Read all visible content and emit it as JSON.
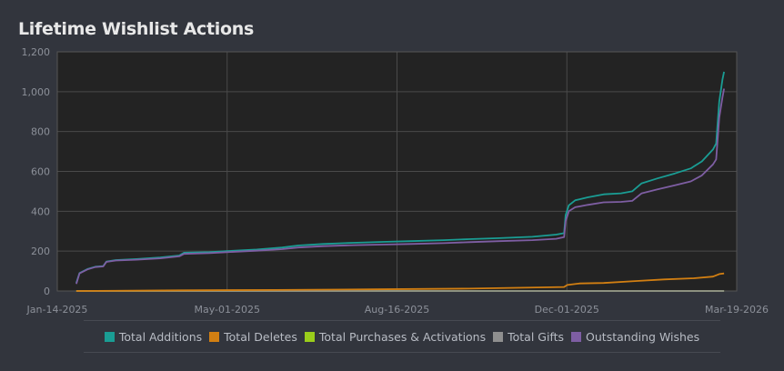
{
  "page": {
    "title": "Lifetime Wishlist Actions"
  },
  "chart_data": {
    "type": "line",
    "title": "Lifetime Wishlist Actions",
    "xlabel": "",
    "ylabel": "",
    "x_range": [
      "2025-01-14",
      "2026-03-19"
    ],
    "ylim": [
      0,
      1200
    ],
    "grid": true,
    "legend_position": "bottom",
    "x_ticks": [
      "Jan-14-2025",
      "May-01-2025",
      "Aug-16-2025",
      "Dec-01-2025",
      "Mar-19-2026"
    ],
    "y_ticks": [
      0,
      200,
      400,
      600,
      800,
      1000,
      1200
    ],
    "y_tick_labels": [
      "0",
      "200",
      "400",
      "600",
      "800",
      "1,000",
      "1,200"
    ],
    "colors": {
      "background": "#32353d",
      "plot_background": "#232323",
      "grid": "#4a4a4a",
      "axis_text": "#8c9099"
    },
    "series": [
      {
        "name": "Total Additions",
        "color": "#1a9d94",
        "points": [
          [
            "2025-01-26",
            40
          ],
          [
            "2025-01-28",
            90
          ],
          [
            "2025-02-02",
            110
          ],
          [
            "2025-02-07",
            122
          ],
          [
            "2025-02-12",
            125
          ],
          [
            "2025-02-14",
            148
          ],
          [
            "2025-02-20",
            155
          ],
          [
            "2025-03-05",
            160
          ],
          [
            "2025-03-20",
            168
          ],
          [
            "2025-04-01",
            178
          ],
          [
            "2025-04-04",
            192
          ],
          [
            "2025-04-20",
            195
          ],
          [
            "2025-05-01",
            200
          ],
          [
            "2025-05-20",
            208
          ],
          [
            "2025-06-05",
            218
          ],
          [
            "2025-06-15",
            228
          ],
          [
            "2025-07-01",
            236
          ],
          [
            "2025-07-20",
            242
          ],
          [
            "2025-08-10",
            247
          ],
          [
            "2025-08-25",
            250
          ],
          [
            "2025-09-15",
            255
          ],
          [
            "2025-10-01",
            260
          ],
          [
            "2025-10-20",
            265
          ],
          [
            "2025-11-10",
            272
          ],
          [
            "2025-11-25",
            283
          ],
          [
            "2025-11-30",
            290
          ],
          [
            "2025-12-01",
            380
          ],
          [
            "2025-12-03",
            430
          ],
          [
            "2025-12-07",
            455
          ],
          [
            "2025-12-15",
            470
          ],
          [
            "2025-12-25",
            485
          ],
          [
            "2026-01-05",
            490
          ],
          [
            "2026-01-12",
            500
          ],
          [
            "2026-01-18",
            540
          ],
          [
            "2026-01-28",
            565
          ],
          [
            "2026-02-08",
            590
          ],
          [
            "2026-02-18",
            615
          ],
          [
            "2026-02-25",
            650
          ],
          [
            "2026-03-04",
            710
          ],
          [
            "2026-03-06",
            740
          ],
          [
            "2026-03-08",
            950
          ],
          [
            "2026-03-10",
            1060
          ],
          [
            "2026-03-11",
            1100
          ]
        ]
      },
      {
        "name": "Total Deletes",
        "color": "#d27f12",
        "points": [
          [
            "2025-01-26",
            0
          ],
          [
            "2025-04-01",
            3
          ],
          [
            "2025-06-01",
            5
          ],
          [
            "2025-08-01",
            8
          ],
          [
            "2025-10-01",
            12
          ],
          [
            "2025-11-30",
            20
          ],
          [
            "2025-12-02",
            30
          ],
          [
            "2025-12-10",
            38
          ],
          [
            "2025-12-25",
            40
          ],
          [
            "2026-01-15",
            50
          ],
          [
            "2026-02-01",
            58
          ],
          [
            "2026-02-20",
            64
          ],
          [
            "2026-03-04",
            72
          ],
          [
            "2026-03-08",
            85
          ],
          [
            "2026-03-11",
            88
          ]
        ]
      },
      {
        "name": "Total Purchases & Activations",
        "color": "#9acd1b",
        "points": [
          [
            "2025-01-26",
            0
          ],
          [
            "2026-03-11",
            0
          ]
        ]
      },
      {
        "name": "Total Gifts",
        "color": "#8f8f8f",
        "points": [
          [
            "2025-01-26",
            0
          ],
          [
            "2026-03-11",
            0
          ]
        ]
      },
      {
        "name": "Outstanding Wishes",
        "color": "#7e5ea3",
        "points": [
          [
            "2025-01-26",
            35
          ],
          [
            "2025-01-28",
            88
          ],
          [
            "2025-02-02",
            108
          ],
          [
            "2025-02-07",
            120
          ],
          [
            "2025-02-12",
            123
          ],
          [
            "2025-02-14",
            146
          ],
          [
            "2025-02-20",
            153
          ],
          [
            "2025-03-05",
            157
          ],
          [
            "2025-03-20",
            164
          ],
          [
            "2025-04-01",
            174
          ],
          [
            "2025-04-04",
            186
          ],
          [
            "2025-04-20",
            190
          ],
          [
            "2025-05-01",
            195
          ],
          [
            "2025-05-20",
            202
          ],
          [
            "2025-06-05",
            210
          ],
          [
            "2025-06-15",
            218
          ],
          [
            "2025-07-01",
            225
          ],
          [
            "2025-07-20",
            230
          ],
          [
            "2025-08-10",
            233
          ],
          [
            "2025-08-25",
            236
          ],
          [
            "2025-09-15",
            240
          ],
          [
            "2025-10-01",
            245
          ],
          [
            "2025-10-20",
            250
          ],
          [
            "2025-11-10",
            255
          ],
          [
            "2025-11-25",
            262
          ],
          [
            "2025-11-30",
            270
          ],
          [
            "2025-12-01",
            350
          ],
          [
            "2025-12-03",
            400
          ],
          [
            "2025-12-07",
            420
          ],
          [
            "2025-12-15",
            432
          ],
          [
            "2025-12-25",
            445
          ],
          [
            "2026-01-05",
            447
          ],
          [
            "2026-01-12",
            452
          ],
          [
            "2026-01-18",
            490
          ],
          [
            "2026-01-28",
            510
          ],
          [
            "2026-02-08",
            530
          ],
          [
            "2026-02-18",
            550
          ],
          [
            "2026-02-25",
            580
          ],
          [
            "2026-03-04",
            635
          ],
          [
            "2026-03-06",
            660
          ],
          [
            "2026-03-08",
            870
          ],
          [
            "2026-03-10",
            970
          ],
          [
            "2026-03-11",
            1015
          ]
        ]
      }
    ]
  }
}
